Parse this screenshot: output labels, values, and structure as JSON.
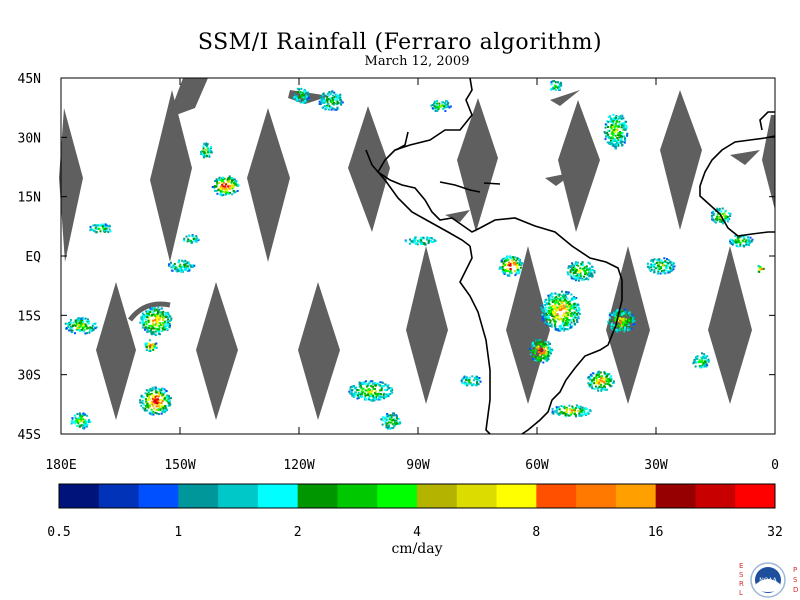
{
  "title": "SSM/I Rainfall (Ferraro algorithm)",
  "subtitle": "March 12, 2009",
  "lat_labels": [
    "45N",
    "30N",
    "15N",
    "EQ",
    "15S",
    "30S",
    "45S"
  ],
  "lon_labels": [
    "180E",
    "150W",
    "120W",
    "90W",
    "60W",
    "30W",
    "0"
  ],
  "colorbar": {
    "colors": [
      "#00137a",
      "#0033b8",
      "#0050ff",
      "#00979b",
      "#00c8c8",
      "#00ffff",
      "#009600",
      "#00c800",
      "#00ff00",
      "#b4b400",
      "#dcdc00",
      "#ffff00",
      "#ff5000",
      "#ff7800",
      "#ffa000",
      "#960000",
      "#c80000",
      "#ff0000"
    ],
    "tick_labels": [
      "0.5",
      "1",
      "2",
      "4",
      "8",
      "16",
      "32"
    ],
    "units": "cm/day"
  },
  "colors": {
    "no_data": "#5f5f5f",
    "coast": "#000000"
  },
  "logo_letters": {
    "left": "ESRL",
    "right": "PSD",
    "center": "NOAA"
  }
}
